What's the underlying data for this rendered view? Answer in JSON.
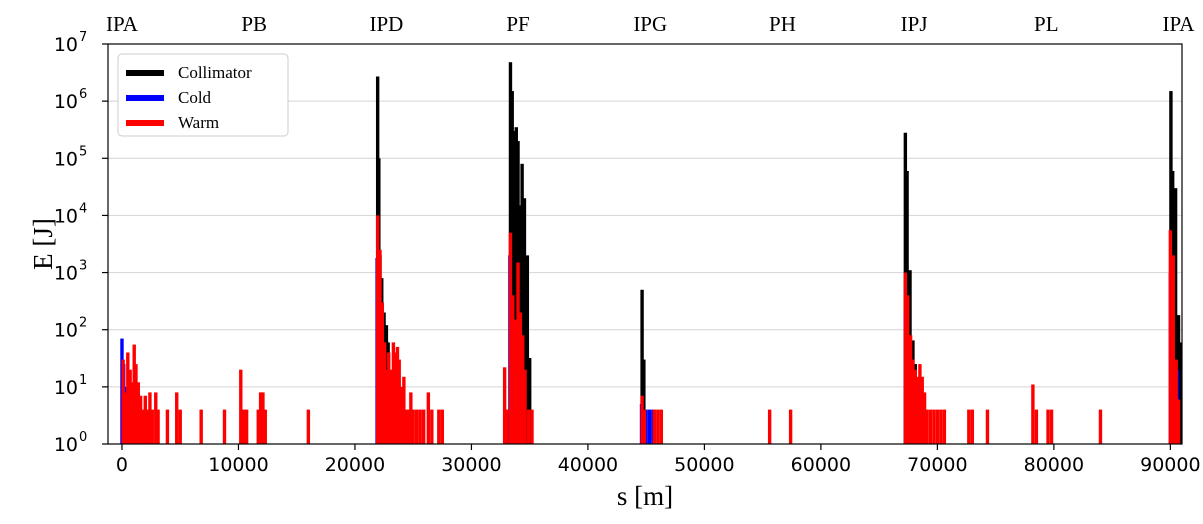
{
  "chart_data": {
    "type": "bar",
    "xlabel": "s [m]",
    "ylabel": "E [J]",
    "xlim": [
      -1200,
      91000
    ],
    "ylim": [
      1,
      10000000
    ],
    "yscale": "log",
    "grid": "horizontal",
    "legend_position": "top-left",
    "x_ticks": [
      "0",
      "10000",
      "20000",
      "30000",
      "40000",
      "50000",
      "60000",
      "70000",
      "80000",
      "90000"
    ],
    "x_tick_values": [
      0,
      10000,
      20000,
      30000,
      40000,
      50000,
      60000,
      70000,
      80000,
      90000
    ],
    "y_ticks": [
      {
        "base": "10",
        "exp": "0",
        "value": 1
      },
      {
        "base": "10",
        "exp": "1",
        "value": 10
      },
      {
        "base": "10",
        "exp": "2",
        "value": 100
      },
      {
        "base": "10",
        "exp": "3",
        "value": 1000
      },
      {
        "base": "10",
        "exp": "4",
        "value": 10000
      },
      {
        "base": "10",
        "exp": "5",
        "value": 100000
      },
      {
        "base": "10",
        "exp": "6",
        "value": 1000000
      },
      {
        "base": "10",
        "exp": "7",
        "value": 10000000
      }
    ],
    "top_labels": [
      {
        "label": "IPA",
        "s": 0
      },
      {
        "label": "PB",
        "s": 11350
      },
      {
        "label": "IPD",
        "s": 22700
      },
      {
        "label": "PF",
        "s": 34000
      },
      {
        "label": "IPG",
        "s": 45350
      },
      {
        "label": "PH",
        "s": 56700
      },
      {
        "label": "IPJ",
        "s": 68000
      },
      {
        "label": "PL",
        "s": 79350
      },
      {
        "label": "IPA",
        "s": 90700
      }
    ],
    "series": [
      {
        "name": "Collimator",
        "color": "#000000",
        "points": [
          [
            21950,
            2700000
          ],
          [
            22050,
            100000
          ],
          [
            22150,
            2000
          ],
          [
            22300,
            800
          ],
          [
            22500,
            200
          ],
          [
            22700,
            120
          ],
          [
            22850,
            60
          ],
          [
            33350,
            4800000
          ],
          [
            33500,
            1500000
          ],
          [
            33700,
            300000
          ],
          [
            33850,
            350000
          ],
          [
            34000,
            200000
          ],
          [
            34200,
            15000
          ],
          [
            34350,
            80000
          ],
          [
            34550,
            20000
          ],
          [
            34800,
            2000
          ],
          [
            35000,
            32
          ],
          [
            44650,
            500
          ],
          [
            44800,
            30
          ],
          [
            67250,
            280000
          ],
          [
            67400,
            60000
          ],
          [
            67650,
            1100
          ],
          [
            67900,
            65
          ],
          [
            68100,
            25
          ],
          [
            90050,
            1500000
          ],
          [
            90200,
            60000
          ],
          [
            90450,
            30000
          ],
          [
            90700,
            180
          ],
          [
            90850,
            60
          ]
        ]
      },
      {
        "name": "Cold",
        "color": "#0000ff",
        "points": [
          [
            0,
            70
          ],
          [
            150,
            25
          ],
          [
            300,
            10
          ],
          [
            21900,
            1800
          ],
          [
            22100,
            300
          ],
          [
            22300,
            40
          ],
          [
            22500,
            20
          ],
          [
            22700,
            15
          ],
          [
            22900,
            10
          ],
          [
            23100,
            5
          ],
          [
            33300,
            2000
          ],
          [
            33600,
            150
          ],
          [
            34000,
            25
          ],
          [
            34400,
            10
          ],
          [
            44600,
            5
          ],
          [
            45000,
            4
          ],
          [
            45300,
            4
          ],
          [
            45600,
            4
          ],
          [
            67250,
            200
          ],
          [
            67500,
            50
          ],
          [
            67800,
            8
          ],
          [
            68100,
            6
          ],
          [
            68400,
            5
          ],
          [
            90000,
            1000
          ],
          [
            90250,
            40
          ],
          [
            90600,
            20
          ]
        ]
      },
      {
        "name": "Warm",
        "color": "#ff0000",
        "points": [
          [
            100,
            30
          ],
          [
            300,
            8
          ],
          [
            500,
            40
          ],
          [
            700,
            20
          ],
          [
            900,
            12
          ],
          [
            1050,
            55
          ],
          [
            1200,
            25
          ],
          [
            1400,
            12
          ],
          [
            1600,
            7
          ],
          [
            1800,
            4
          ],
          [
            2000,
            7
          ],
          [
            2200,
            4
          ],
          [
            2400,
            8
          ],
          [
            2600,
            4
          ],
          [
            2900,
            8
          ],
          [
            3100,
            4
          ],
          [
            3900,
            4
          ],
          [
            4700,
            8
          ],
          [
            5000,
            4
          ],
          [
            6800,
            4
          ],
          [
            8800,
            4
          ],
          [
            10200,
            20
          ],
          [
            10450,
            4
          ],
          [
            10700,
            4
          ],
          [
            11700,
            4
          ],
          [
            11900,
            8
          ],
          [
            12100,
            8
          ],
          [
            12300,
            4
          ],
          [
            16000,
            4
          ],
          [
            21950,
            10000
          ],
          [
            22150,
            2500
          ],
          [
            22350,
            300
          ],
          [
            22550,
            60
          ],
          [
            22700,
            20
          ],
          [
            22900,
            40
          ],
          [
            23100,
            20
          ],
          [
            23300,
            60
          ],
          [
            23450,
            40
          ],
          [
            23650,
            50
          ],
          [
            23800,
            30
          ],
          [
            24000,
            10
          ],
          [
            24200,
            15
          ],
          [
            24400,
            4
          ],
          [
            24600,
            4
          ],
          [
            24800,
            8
          ],
          [
            25000,
            4
          ],
          [
            25300,
            4
          ],
          [
            25600,
            4
          ],
          [
            25900,
            4
          ],
          [
            26300,
            8
          ],
          [
            26600,
            4
          ],
          [
            27200,
            4
          ],
          [
            27500,
            4
          ],
          [
            32850,
            22
          ],
          [
            33050,
            4
          ],
          [
            33350,
            5000
          ],
          [
            33550,
            400
          ],
          [
            33800,
            150
          ],
          [
            34000,
            1500
          ],
          [
            34200,
            200
          ],
          [
            34400,
            80
          ],
          [
            34600,
            20
          ],
          [
            34900,
            4
          ],
          [
            35200,
            4
          ],
          [
            44650,
            7
          ],
          [
            44850,
            4
          ],
          [
            45700,
            4
          ],
          [
            46000,
            4
          ],
          [
            46300,
            4
          ],
          [
            55600,
            4
          ],
          [
            57400,
            4
          ],
          [
            67250,
            1000
          ],
          [
            67450,
            400
          ],
          [
            67700,
            80
          ],
          [
            67900,
            30
          ],
          [
            68100,
            20
          ],
          [
            68300,
            15
          ],
          [
            68500,
            25
          ],
          [
            68700,
            15
          ],
          [
            68900,
            8
          ],
          [
            69100,
            4
          ],
          [
            69400,
            4
          ],
          [
            69700,
            4
          ],
          [
            70000,
            4
          ],
          [
            70300,
            4
          ],
          [
            70600,
            4
          ],
          [
            72700,
            4
          ],
          [
            73000,
            4
          ],
          [
            74300,
            4
          ],
          [
            78200,
            11
          ],
          [
            78500,
            4
          ],
          [
            79500,
            4
          ],
          [
            79800,
            4
          ],
          [
            84000,
            4
          ],
          [
            90000,
            5500
          ],
          [
            90250,
            2000
          ],
          [
            90500,
            30
          ],
          [
            90700,
            6
          ]
        ]
      }
    ]
  }
}
